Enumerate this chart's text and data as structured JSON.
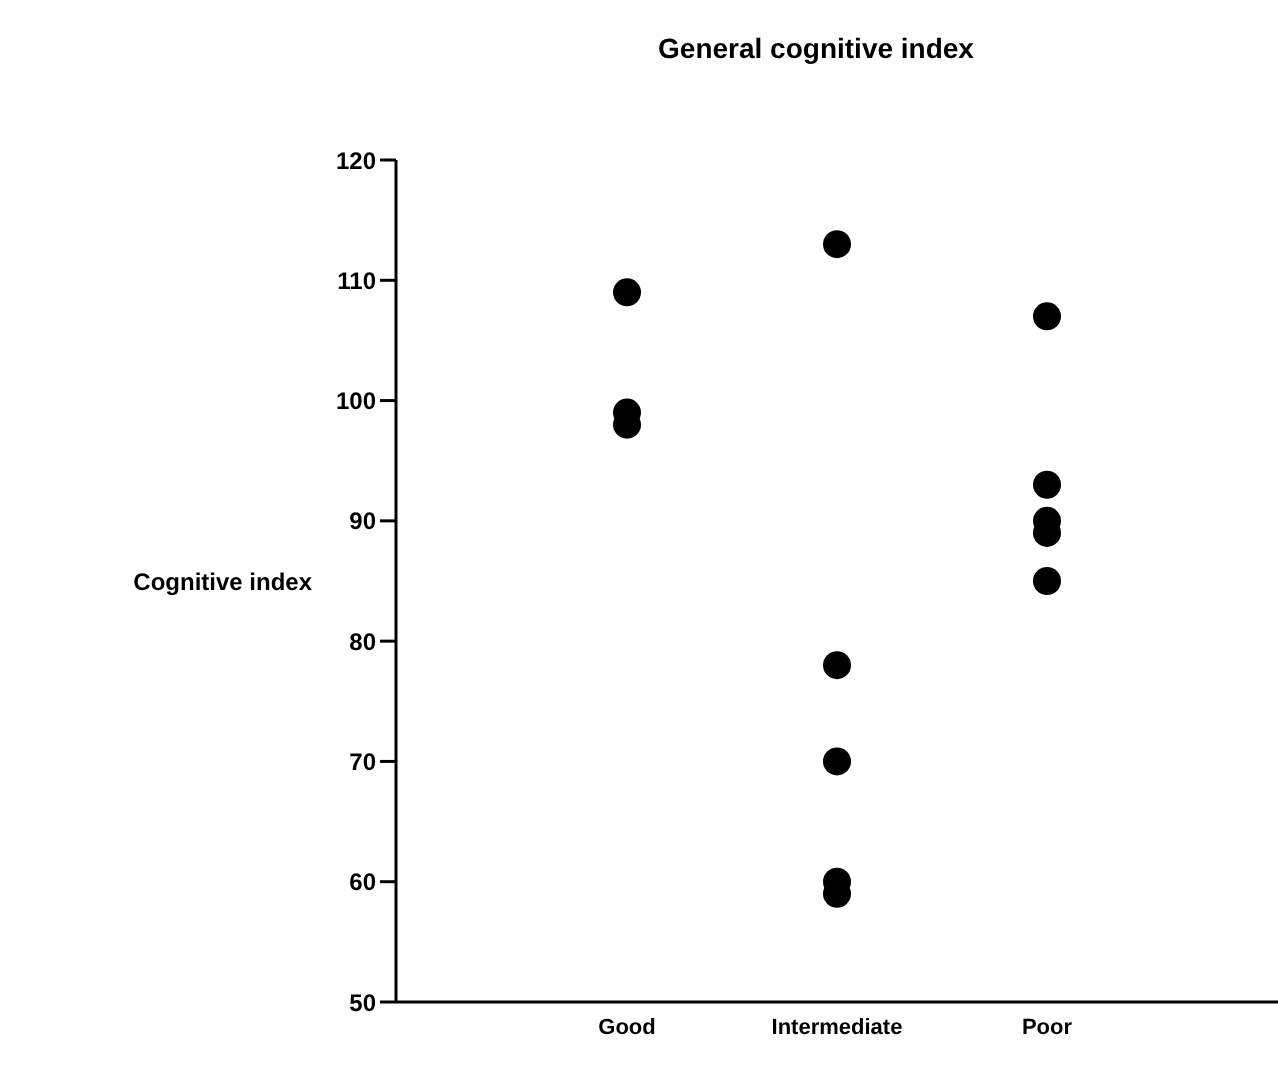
{
  "chart_data": {
    "type": "scatter",
    "title": "General cognitive index",
    "ylabel": "Cognitive index",
    "categories": [
      "Good",
      "Intermediate",
      "Poor"
    ],
    "series": [
      {
        "color": "#000000",
        "x": [
          "Good",
          "Good",
          "Good",
          "Intermediate",
          "Intermediate",
          "Intermediate",
          "Intermediate",
          "Intermediate",
          "Poor",
          "Poor",
          "Poor",
          "Poor",
          "Poor"
        ],
        "values": [
          109,
          99,
          98,
          113,
          78,
          70,
          60,
          59,
          107,
          93,
          90,
          89,
          85
        ]
      }
    ],
    "ylim": [
      50,
      120
    ],
    "yticks": [
      50,
      60,
      70,
      80,
      90,
      100,
      110,
      120
    ],
    "grid": false,
    "legend": false,
    "marker": "circle"
  }
}
